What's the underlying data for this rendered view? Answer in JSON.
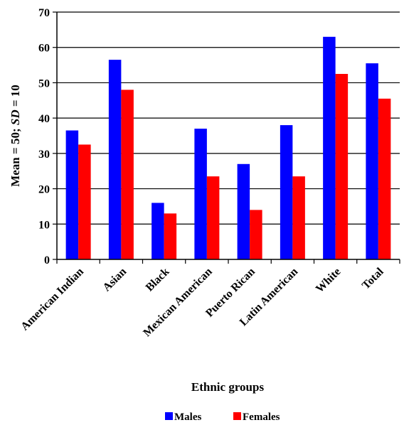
{
  "chart_data": {
    "type": "bar",
    "title": "",
    "xlabel": "Ethnic groups",
    "ylabel_parts": [
      {
        "text": "Mean = 50; ",
        "italic": false
      },
      {
        "text": "SD",
        "italic": true
      },
      {
        "text": " = 10",
        "italic": false
      }
    ],
    "categories": [
      "American Indian",
      "Asian",
      "Black",
      "Mexican American",
      "Puerto Rican",
      "Latin American",
      "White",
      "Total"
    ],
    "series": [
      {
        "name": "Males",
        "color": "#0000ff",
        "values": [
          36.5,
          56.5,
          16,
          37,
          27,
          38,
          63,
          55.5
        ]
      },
      {
        "name": "Females",
        "color": "#ff0000",
        "values": [
          32.5,
          48,
          13,
          23.5,
          14,
          23.5,
          52.5,
          45.5
        ]
      }
    ],
    "ylim": [
      0,
      70
    ],
    "yticks": [
      0,
      10,
      20,
      30,
      40,
      50,
      60,
      70
    ],
    "grid": true,
    "legend_position": "bottom"
  }
}
